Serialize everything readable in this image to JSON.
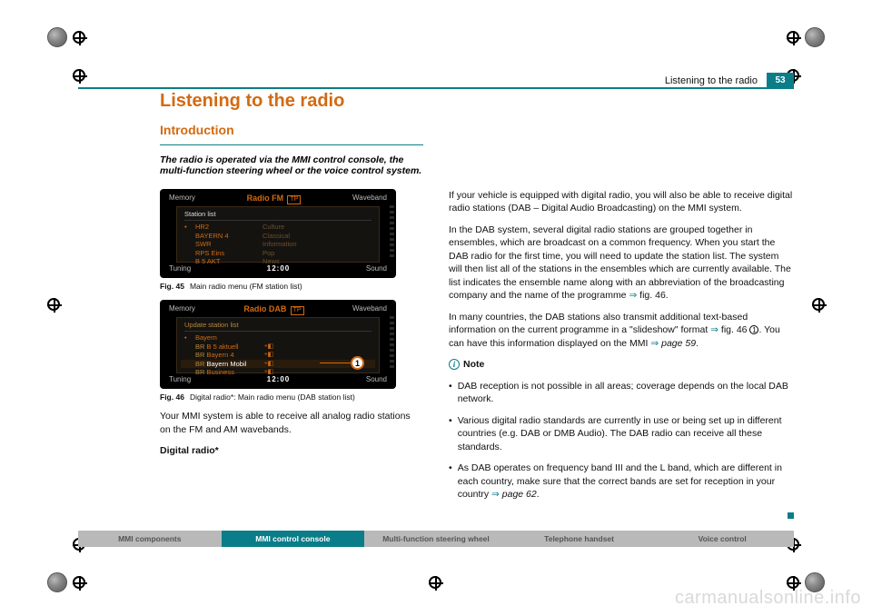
{
  "page_number": "53",
  "top_right_label": "Listening to the radio",
  "headings": {
    "chapter": "Listening to the radio",
    "sub": "Introduction",
    "lead": "The radio is operated via the MMI control console, the multi-function steering wheel or the voice control system."
  },
  "fig1": {
    "topleft": "Memory",
    "topright": "Waveband",
    "title_a": "Radio FM",
    "tp": "TP",
    "panel_title": "Station list",
    "rows": [
      {
        "dot": "•",
        "name": "HR2",
        "genre": "Culture"
      },
      {
        "dot": "",
        "name": "BAYERN 4",
        "genre": "Classical"
      },
      {
        "dot": "",
        "name": "SWR",
        "genre": "Information"
      },
      {
        "dot": "",
        "name": "RPS Eins",
        "genre": "Pop"
      },
      {
        "dot": "",
        "name": "B 5 AKT",
        "genre": "News"
      }
    ],
    "bottomleft": "Tuning",
    "clock": "12:00",
    "bottomright": "Sound",
    "caption_no": "Fig. 45",
    "caption_txt": "Main radio menu (FM station list)"
  },
  "fig2": {
    "topleft": "Memory",
    "topright": "Waveband",
    "title_a": "Radio DAB",
    "tp": "TP",
    "panel_title": "Update station list",
    "rows": [
      {
        "dot": "•",
        "ens": "",
        "name": "Bayern",
        "icon": ""
      },
      {
        "dot": "",
        "ens": "BR",
        "name": "B 5 aktuell",
        "icon": "⁍◧"
      },
      {
        "dot": "",
        "ens": "BR",
        "name": "Bayern 4",
        "icon": "⁍◧"
      },
      {
        "dot": "",
        "ens": "BR",
        "name": "Bayern Mobil",
        "icon": "⁍◧",
        "sel": true
      },
      {
        "dot": "",
        "ens": "BR",
        "name": "Business",
        "icon": "⁍◧"
      }
    ],
    "callout": "1",
    "bottomleft": "Tuning",
    "clock": "12:00",
    "bottomright": "Sound",
    "caption_no": "Fig. 46",
    "caption_txt": "Digital radio*: Main radio menu (DAB station list)"
  },
  "left_paras": [
    "Your MMI system is able to receive all analog radio stations on the FM and AM wavebands."
  ],
  "digital_label": "Digital radio*",
  "right_paras": [
    "If your vehicle is equipped with digital radio, you will also be able to receive digital radio stations (DAB – Digital Audio Broadcasting) on the MMI system.",
    "In the DAB system, several digital radio stations are grouped together in ensembles, which are broadcast on a common frequency. When you start the DAB radio for the first time, you will need to update the station list. The system will then list all of the stations in the ensembles which are currently available. The list indicates the ensemble name along with an abbreviation of the broadcasting company and the name of the programme ⇒ fig. 46.",
    "In many countries, the DAB stations also transmit additional text-based information on the current programme in a \"slideshow\" format ⇒ fig. 46 ①. You can have this information displayed on the MMI ⇒ page 59."
  ],
  "note_label": "Note",
  "notes": [
    "DAB reception is not possible in all areas; coverage depends on the local DAB network.",
    "Various digital radio standards are currently in use or being set up in different countries (e.g. DAB or DMB Audio). The DAB radio can receive all these standards.",
    "As DAB operates on frequency band III and the L band, which are different in each country, make sure that the correct bands are set for reception in your country ⇒ page 62."
  ],
  "tabs": {
    "items": [
      "MMI components",
      "MMI control console",
      "Multi-function steering wheel",
      "Telephone handset",
      "Voice control"
    ],
    "active_index": 1
  },
  "watermark": "carmanualsonline.info",
  "colors": {
    "accent": "#d36a11",
    "teal": "#0b7d88",
    "tab_grey": "#b9b9b9"
  }
}
